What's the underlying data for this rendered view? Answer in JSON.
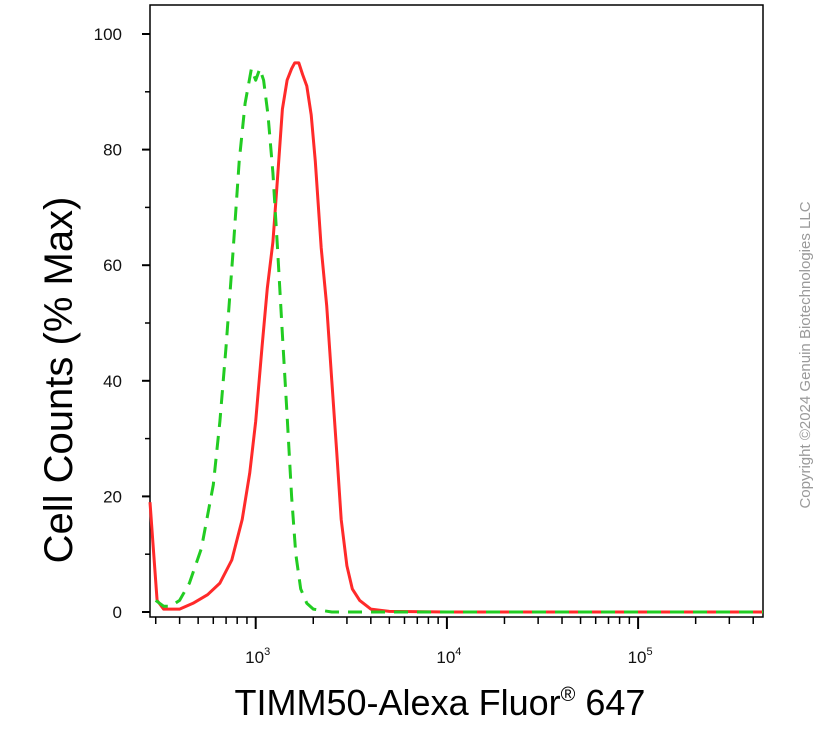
{
  "chart_data": {
    "type": "line",
    "xlabel": "TIMM50-Alexa Fluor",
    "xlabel_sup": "®",
    "xlabel_suffix": " 647",
    "ylabel": "Cell Counts (% Max)",
    "xscale": "log",
    "xlim": [
      280,
      450000
    ],
    "ylim": [
      0,
      100
    ],
    "yticks": [
      {
        "value": 0,
        "label": "0"
      },
      {
        "value": 20,
        "label": "20"
      },
      {
        "value": 40,
        "label": "40"
      },
      {
        "value": 60,
        "label": "60"
      },
      {
        "value": 80,
        "label": "80"
      },
      {
        "value": 100,
        "label": "100"
      }
    ],
    "xticks": [
      {
        "value": 1000,
        "base": "10",
        "exp": "3"
      },
      {
        "value": 10000,
        "base": "10",
        "exp": "4"
      },
      {
        "value": 100000,
        "base": "10",
        "exp": "5"
      }
    ],
    "grid": false,
    "legend": "none",
    "series": [
      {
        "color": "#ff2a2a",
        "style": "solid",
        "points": [
          [
            280,
            19
          ],
          [
            290,
            12
          ],
          [
            305,
            2
          ],
          [
            330,
            0.5
          ],
          [
            400,
            0.5
          ],
          [
            470,
            1.5
          ],
          [
            560,
            3
          ],
          [
            650,
            5
          ],
          [
            750,
            9
          ],
          [
            850,
            16
          ],
          [
            930,
            24
          ],
          [
            1000,
            33
          ],
          [
            1080,
            46
          ],
          [
            1150,
            56
          ],
          [
            1230,
            64
          ],
          [
            1300,
            75
          ],
          [
            1380,
            87
          ],
          [
            1460,
            92
          ],
          [
            1540,
            94
          ],
          [
            1600,
            95
          ],
          [
            1680,
            95
          ],
          [
            1760,
            93
          ],
          [
            1850,
            91
          ],
          [
            1950,
            86
          ],
          [
            2050,
            78
          ],
          [
            2200,
            63
          ],
          [
            2350,
            53
          ],
          [
            2500,
            40
          ],
          [
            2650,
            28
          ],
          [
            2800,
            16
          ],
          [
            3000,
            8
          ],
          [
            3200,
            4
          ],
          [
            3500,
            2
          ],
          [
            4000,
            0.5
          ],
          [
            5000,
            0.1
          ],
          [
            10000,
            0
          ],
          [
            50000,
            0
          ],
          [
            450000,
            0
          ]
        ]
      },
      {
        "color": "#22cc22",
        "style": "dashed",
        "points": [
          [
            300,
            2
          ],
          [
            330,
            1
          ],
          [
            360,
            1
          ],
          [
            400,
            2
          ],
          [
            450,
            5
          ],
          [
            520,
            11
          ],
          [
            600,
            22
          ],
          [
            650,
            33
          ],
          [
            700,
            46
          ],
          [
            760,
            62
          ],
          [
            820,
            78
          ],
          [
            880,
            88
          ],
          [
            950,
            94
          ],
          [
            1000,
            92
          ],
          [
            1050,
            94
          ],
          [
            1100,
            92
          ],
          [
            1160,
            86
          ],
          [
            1230,
            76
          ],
          [
            1300,
            63
          ],
          [
            1380,
            48
          ],
          [
            1460,
            34
          ],
          [
            1540,
            20
          ],
          [
            1620,
            10
          ],
          [
            1720,
            4
          ],
          [
            1850,
            1.5
          ],
          [
            2000,
            0.5
          ],
          [
            2500,
            0
          ],
          [
            450000,
            0
          ]
        ]
      }
    ]
  },
  "copyright": "Copyright ©2024 Genuin Biotechnologies LLC"
}
